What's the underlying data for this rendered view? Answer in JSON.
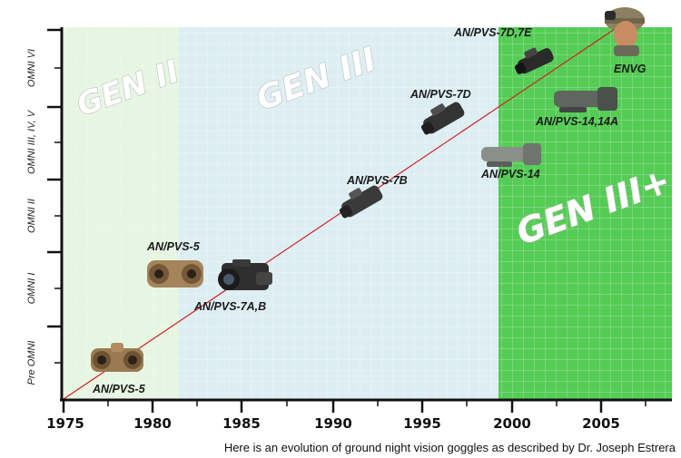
{
  "eras": [
    {
      "label": "GEN II",
      "color": "#e6f6e2"
    },
    {
      "label": "GEN III",
      "color": "#ddeef3"
    },
    {
      "label": "GEN III+",
      "color": "#55cc55"
    }
  ],
  "x_axis": {
    "ticks": [
      "1975",
      "1980",
      "1985",
      "1990",
      "1995",
      "2000",
      "2005"
    ]
  },
  "y_axis": {
    "ticks": [
      "Pre OMNI",
      "OMNI I",
      "OMNI II",
      "OMNI III, IV, V",
      "OMNI VI"
    ]
  },
  "devices": [
    {
      "label": "AN/PVS-5",
      "icon": "goggle-icon"
    },
    {
      "label": "AN/PVS-5",
      "icon": "goggle-icon"
    },
    {
      "label": "AN/PVS-7A,B",
      "icon": "camera-icon"
    },
    {
      "label": "AN/PVS-7B",
      "icon": "goggle-icon"
    },
    {
      "label": "AN/PVS-7D",
      "icon": "goggle-icon"
    },
    {
      "label": "AN/PVS-14",
      "icon": "monocular-icon"
    },
    {
      "label": "AN/PVS-14,14A",
      "icon": "monocular-icon"
    },
    {
      "label": "AN/PVS-7D,7E",
      "icon": "goggle-icon"
    },
    {
      "label": "ENVG",
      "icon": "soldier-icon"
    }
  ],
  "trend_line_color": "#cc2222",
  "caption": "Here is an evolution of ground night vision goggles as described by Dr. Joseph Estrera"
}
